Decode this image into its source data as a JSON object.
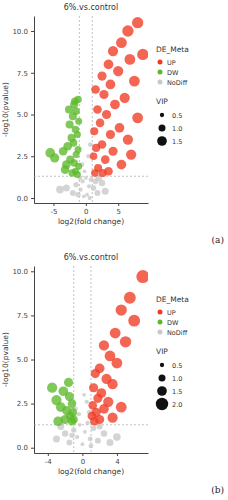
{
  "chart_data": [
    {
      "type": "scatter",
      "title": "6%.vs.control",
      "x_label": "log2(fold change)",
      "y_label": "-log10(pvalue)",
      "annotation": "(a)",
      "legend": "right",
      "legend_title": "DE_Meta",
      "grid": false,
      "xlim": [
        -8,
        9.6
      ],
      "xticks": [
        -5,
        0,
        5
      ],
      "ylim": [
        -0.3,
        10.9
      ],
      "yticks": [
        {
          "value": 0,
          "label": "0.0"
        },
        {
          "value": 2.5,
          "label": "2.5"
        },
        {
          "value": 5,
          "label": "5.0"
        },
        {
          "value": 7.5,
          "label": "7.5"
        },
        {
          "value": 10,
          "label": "10.0"
        }
      ],
      "ref_lines": {
        "x": [
          -1,
          1
        ],
        "y": 1.301
      },
      "size_legend": {
        "title": "VIP",
        "ticks": [
          {
            "value": 0.5,
            "label": "0.5"
          },
          {
            "value": 1,
            "label": "1.0"
          },
          {
            "value": 1.5,
            "label": "1.5"
          }
        ]
      },
      "series": [
        {
          "name": "UP",
          "color": "#ef3b24",
          "marker": "circle",
          "x": [
            8.0,
            6.5,
            8.8,
            5.5,
            4.2,
            6.8,
            3.5,
            5.0,
            2.5,
            7.5,
            3.8,
            1.5,
            2.8,
            6.0,
            4.5,
            1.8,
            3.2,
            8.0,
            2.2,
            5.2,
            1.3,
            3.8,
            6.5,
            2.5,
            1.6,
            4.2,
            1.2,
            3.0,
            5.5,
            1.9,
            2.6,
            1.4,
            7.0,
            3.5
          ],
          "values": [
            10.5,
            10.0,
            8.6,
            9.3,
            8.8,
            8.3,
            8.0,
            7.6,
            7.3,
            7.0,
            6.8,
            6.5,
            6.2,
            6.0,
            5.6,
            5.3,
            5.0,
            4.8,
            4.5,
            4.2,
            4.0,
            3.8,
            3.5,
            3.2,
            3.0,
            2.8,
            2.5,
            2.3,
            2.0,
            1.8,
            1.5,
            1.5,
            2.6,
            1.6
          ],
          "size": [
            1.8,
            1.8,
            1.8,
            1.7,
            1.6,
            1.7,
            1.5,
            1.6,
            1.4,
            1.7,
            1.5,
            1.3,
            1.4,
            1.6,
            1.5,
            1.3,
            1.4,
            1.7,
            1.3,
            1.5,
            1.2,
            1.4,
            1.6,
            1.3,
            1.2,
            1.4,
            1.1,
            1.3,
            1.5,
            1.2,
            1.2,
            1.1,
            1.6,
            1.3
          ]
        },
        {
          "name": "DW",
          "color": "#5cb82a",
          "marker": "circle",
          "x": [
            -5.5,
            -4.8,
            -3.5,
            -1.2,
            -1.8,
            -1.5,
            -2.0,
            -1.1,
            -2.5,
            -1.6,
            -1.3,
            -2.2,
            -1.9,
            -2.8,
            -1.2,
            -1.5,
            -2.4,
            -1.8,
            -3.0,
            -1.1,
            -1.6,
            -2.1,
            -1.3,
            -3.2,
            -2.6,
            -1.7
          ],
          "values": [
            2.7,
            2.4,
            2.8,
            5.9,
            5.6,
            5.2,
            4.9,
            4.6,
            4.4,
            4.1,
            3.8,
            3.6,
            3.3,
            3.1,
            2.9,
            2.6,
            2.3,
            2.1,
            2.0,
            1.9,
            1.6,
            1.5,
            1.4,
            1.7,
            5.3,
            5.8
          ],
          "size": [
            1.5,
            1.4,
            1.3,
            1.1,
            1.2,
            1.1,
            1.2,
            1.0,
            1.2,
            1.1,
            1.0,
            1.2,
            1.1,
            1.3,
            1.0,
            1.0,
            1.2,
            1.1,
            1.3,
            1.0,
            1.0,
            1.1,
            1.0,
            1.3,
            1.2,
            1.1
          ]
        },
        {
          "name": "NoDiff",
          "color": "#c8c8c8",
          "marker": "circle",
          "x": [
            -2.0,
            -1.5,
            -0.8,
            -0.5,
            0.2,
            0.5,
            0.8,
            1.2,
            1.8,
            2.5,
            -3.0,
            -0.3,
            0.0,
            -0.9,
            1.5,
            3.0,
            -1.2,
            0.6,
            -4.0,
            2.0,
            -0.6,
            0.4,
            -0.2,
            0.7
          ],
          "values": [
            0.3,
            0.8,
            0.5,
            1.0,
            0.2,
            0.7,
            1.1,
            0.6,
            0.3,
            0.9,
            0.6,
            0.1,
            1.2,
            1.2,
            1.0,
            0.4,
            0.2,
            0.0,
            0.5,
            1.2,
            2.0,
            2.5,
            1.6,
            3.2
          ],
          "size": [
            0.8,
            0.7,
            0.5,
            0.5,
            0.4,
            0.5,
            0.6,
            0.7,
            0.8,
            0.9,
            1.0,
            0.4,
            0.4,
            0.6,
            0.8,
            1.0,
            0.7,
            0.5,
            1.1,
            0.9,
            0.6,
            0.5,
            0.4,
            0.6
          ]
        }
      ]
    },
    {
      "type": "scatter",
      "title": "6%.vs.control",
      "x_label": "log2(fold change)",
      "y_label": "-log10(pvalue)",
      "annotation": "(b)",
      "legend": "right",
      "legend_title": "DE_Meta",
      "grid": false,
      "xlim": [
        -5.6,
        7.6
      ],
      "xticks": [
        -4,
        0,
        4
      ],
      "ylim": [
        -0.3,
        10.3
      ],
      "yticks": [
        {
          "value": 0,
          "label": "0.0"
        },
        {
          "value": 2.5,
          "label": "2.5"
        },
        {
          "value": 5,
          "label": "5.0"
        },
        {
          "value": 7.5,
          "label": "7.5"
        },
        {
          "value": 10,
          "label": "10.0"
        }
      ],
      "ref_lines": {
        "x": [
          -1,
          1
        ],
        "y": 1.301
      },
      "size_legend": {
        "title": "VIP",
        "ticks": [
          {
            "value": 0.5,
            "label": "0.5"
          },
          {
            "value": 1,
            "label": "1.0"
          },
          {
            "value": 1.5,
            "label": "1.5"
          },
          {
            "value": 2,
            "label": "2.0"
          }
        ]
      },
      "series": [
        {
          "name": "UP",
          "color": "#ef3b24",
          "marker": "circle",
          "x": [
            7.0,
            5.5,
            4.5,
            6.0,
            3.8,
            5.0,
            2.5,
            3.2,
            4.0,
            2.0,
            1.5,
            2.8,
            3.5,
            1.3,
            2.2,
            1.8,
            3.0,
            1.2,
            2.5,
            1.6,
            4.5,
            1.1,
            2.0,
            1.4,
            3.5
          ],
          "values": [
            9.7,
            8.5,
            7.8,
            7.2,
            6.5,
            6.0,
            5.8,
            5.2,
            4.8,
            4.5,
            4.2,
            3.9,
            3.6,
            3.4,
            3.1,
            2.8,
            2.6,
            2.4,
            2.2,
            2.0,
            2.3,
            1.8,
            1.6,
            1.5,
            1.7
          ],
          "size": [
            2.1,
            1.9,
            1.8,
            1.9,
            1.7,
            1.8,
            1.6,
            1.7,
            1.7,
            1.5,
            1.4,
            1.6,
            1.6,
            1.4,
            1.5,
            1.4,
            1.6,
            1.3,
            1.5,
            1.4,
            1.7,
            1.3,
            1.4,
            1.3,
            1.6
          ]
        },
        {
          "name": "DW",
          "color": "#5cb82a",
          "marker": "circle",
          "x": [
            -3.5,
            -2.2,
            -3.0,
            -1.5,
            -1.2,
            -2.5,
            -1.8,
            -1.1,
            -1.4,
            -2.0,
            -1.2,
            -2.8,
            -1.6,
            -1.0
          ],
          "values": [
            3.4,
            3.2,
            2.7,
            2.9,
            2.5,
            2.3,
            2.1,
            2.0,
            1.8,
            1.6,
            1.5,
            1.5,
            3.7,
            1.6
          ],
          "size": [
            1.6,
            1.5,
            1.6,
            1.4,
            1.3,
            1.5,
            1.4,
            1.3,
            1.3,
            1.4,
            1.3,
            1.5,
            1.4,
            1.2
          ]
        },
        {
          "name": "NoDiff",
          "color": "#c8c8c8",
          "marker": "circle",
          "x": [
            -3.0,
            -2.0,
            -1.5,
            -1.0,
            -0.6,
            -0.3,
            0.0,
            0.3,
            0.6,
            0.9,
            1.3,
            1.8,
            2.5,
            3.2,
            4.0,
            -0.8,
            0.5,
            0.2,
            -0.4,
            0.8,
            -2.5,
            1.0,
            -1.2,
            2.0
          ],
          "values": [
            0.5,
            0.8,
            0.3,
            1.0,
            0.6,
            1.3,
            0.2,
            0.9,
            1.4,
            0.5,
            1.1,
            0.4,
            0.8,
            0.3,
            0.6,
            2.2,
            2.6,
            3.0,
            1.9,
            2.0,
            1.2,
            0.1,
            0.7,
            1.2
          ],
          "size": [
            1.0,
            0.9,
            0.8,
            0.7,
            0.5,
            0.4,
            0.4,
            0.4,
            0.5,
            0.6,
            0.7,
            0.8,
            0.9,
            1.0,
            1.1,
            0.6,
            0.5,
            0.4,
            0.5,
            0.6,
            1.0,
            0.6,
            0.7,
            0.8
          ]
        }
      ]
    }
  ]
}
